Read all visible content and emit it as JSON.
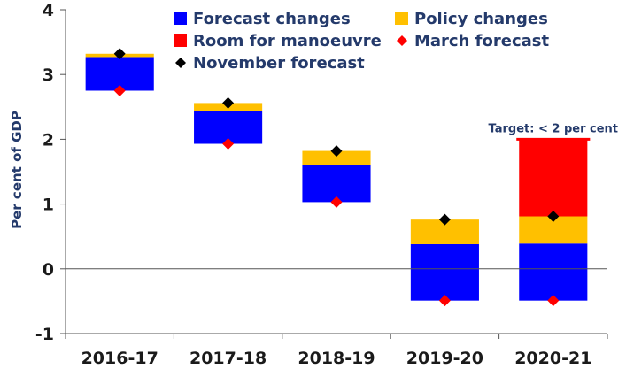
{
  "chart_data": {
    "type": "bar",
    "title": "",
    "ylabel": "Per cent of GDP",
    "xlabel": "",
    "ylim": [
      -1,
      4
    ],
    "yticks": [
      -1,
      0,
      1,
      2,
      3,
      4
    ],
    "categories": [
      "2016-17",
      "2017-18",
      "2018-19",
      "2019-20",
      "2020-21"
    ],
    "stacked_series": [
      {
        "name": "Forecast changes",
        "color": "#0000ff",
        "ranges": [
          [
            2.75,
            3.27
          ],
          [
            1.93,
            2.43
          ],
          [
            1.03,
            1.6
          ],
          [
            -0.49,
            0.38
          ],
          [
            -0.49,
            0.39
          ]
        ]
      },
      {
        "name": "Policy changes",
        "color": "#ffc000",
        "ranges": [
          [
            3.27,
            3.32
          ],
          [
            2.43,
            2.56
          ],
          [
            1.6,
            1.82
          ],
          [
            0.38,
            0.76
          ],
          [
            0.39,
            0.81
          ]
        ]
      },
      {
        "name": "Room for manoeuvre",
        "color": "#ff0000",
        "ranges": [
          null,
          null,
          null,
          null,
          [
            0.81,
            2.0
          ]
        ]
      }
    ],
    "markers": [
      {
        "name": "March forecast",
        "color": "#ff0000",
        "shape": "diamond",
        "values": [
          2.75,
          1.93,
          1.03,
          -0.49,
          -0.49
        ]
      },
      {
        "name": "November forecast",
        "color": "#000000",
        "shape": "diamond",
        "values": [
          3.32,
          2.56,
          1.82,
          0.76,
          0.81
        ]
      }
    ],
    "annotations": [
      {
        "text": "Target: < 2 per cent",
        "category": "2020-21",
        "value": 2.0
      }
    ],
    "legend_position": "top-right",
    "grid": false
  }
}
